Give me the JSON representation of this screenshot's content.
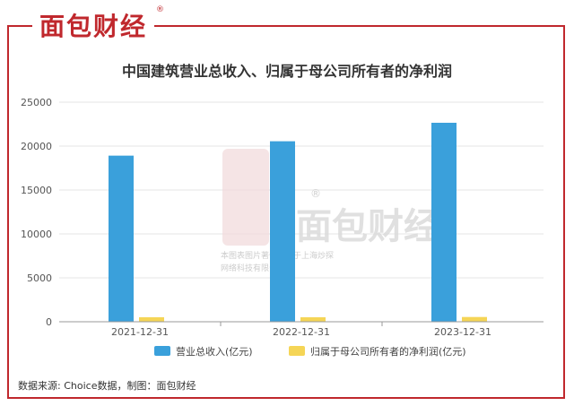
{
  "brand": {
    "name": "面包财经",
    "reg": "®"
  },
  "watermark": {
    "name": "面包财经",
    "reg": "®",
    "line1": "本图表图片著作权属于上海炒探",
    "line2": "网络科技有限公司"
  },
  "source": "数据来源: Choice数据，制图：面包财经",
  "colors": {
    "series1": "#3aa0db",
    "series2": "#f5d556",
    "frame": "#c0282d",
    "grid": "#e6e6e6"
  },
  "chart_data": {
    "type": "bar",
    "title": "中国建筑营业总收入、归属于母公司所有者的净利润",
    "categories": [
      "2021-12-31",
      "2022-12-31",
      "2023-12-31"
    ],
    "series": [
      {
        "name": "营业总收入(亿元)",
        "values": [
          18913,
          20551,
          22655
        ]
      },
      {
        "name": "归属于母公司所有者的净利润(亿元)",
        "values": [
          514,
          510,
          542
        ]
      }
    ],
    "yticks": [
      0,
      5000,
      10000,
      15000,
      20000,
      25000
    ],
    "ylim": [
      0,
      25000
    ],
    "grid": true,
    "legend": "bottom"
  }
}
